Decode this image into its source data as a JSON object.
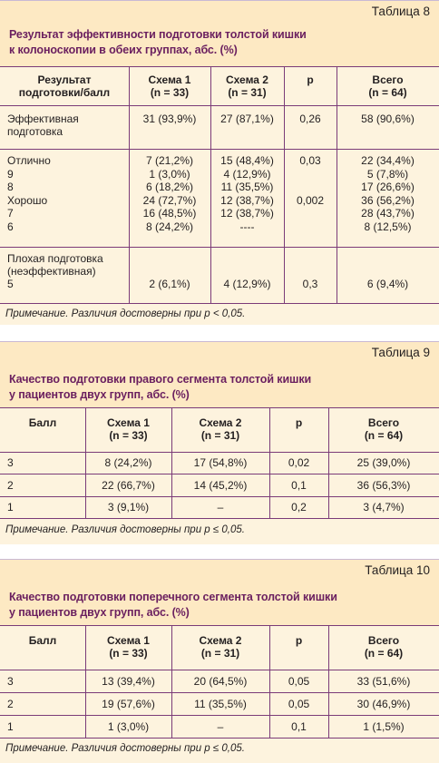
{
  "table8": {
    "number": "Таблица 8",
    "title_line1": "Результат эффективности подготовки толстой кишки",
    "title_line2": "к колоноскопии в обеих группах, абс. (%)",
    "headers": [
      "Результат\nподготовки/балл",
      "Схема 1\n(n = 33)",
      "Схема 2\n(n = 31)",
      "p",
      "Всего\n(n = 64)"
    ],
    "rows": [
      [
        "Эффективная\nподготовка",
        "31 (93,9%)",
        "27 (87,1%)",
        "0,26",
        "58 (90,6%)"
      ],
      [
        "Отлично\n9\n8\nХорошо\n7\n6",
        "7 (21,2%)\n1 (3,0%)\n6 (18,2%)\n24 (72,7%)\n16 (48,5%)\n8 (24,2%)",
        "15 (48,4%)\n4 (12,9%)\n11 (35,5%)\n12 (38,7%)\n12 (38,7%)\n----",
        "0,03\n\n\n0,002\n\n",
        "22 (34,4%)\n5 (7,8%)\n17 (26,6%)\n36 (56,2%)\n28 (43,7%)\n8 (12,5%)"
      ],
      [
        "Плохая подготовка\n(неэффективная)\n5",
        "\n\n2 (6,1%)",
        "\n\n4 (12,9%)",
        "\n\n0,3",
        "\n\n6 (9,4%)"
      ]
    ],
    "note": "Примечание. Различия достоверны при p < 0,05."
  },
  "table9": {
    "number": "Таблица 9",
    "title_line1": "Качество подготовки правого сегмента толстой кишки",
    "title_line2": "у пациентов двух групп, абс. (%)",
    "headers": [
      "Балл",
      "Схема 1\n(n = 33)",
      "Схема 2\n(n = 31)",
      "p",
      "Всего\n(n = 64)"
    ],
    "rows": [
      [
        "3",
        "8 (24,2%)",
        "17 (54,8%)",
        "0,02",
        "25 (39,0%)"
      ],
      [
        "2",
        "22 (66,7%)",
        "14 (45,2%)",
        "0,1",
        "36 (56,3%)"
      ],
      [
        "1",
        "3 (9,1%)",
        "–",
        "0,2",
        "3 (4,7%)"
      ]
    ],
    "note": "Примечание. Различия достоверны при p ≤ 0,05."
  },
  "table10": {
    "number": "Таблица 10",
    "title_line1": "Качество подготовки поперечного сегмента толстой кишки",
    "title_line2": "у пациентов двух групп, абс. (%)",
    "headers": [
      "Балл",
      "Схема 1\n(n = 33)",
      "Схема 2\n(n = 31)",
      "p",
      "Всего\n(n = 64)"
    ],
    "rows": [
      [
        "3",
        "13 (39,4%)",
        "20 (64,5%)",
        "0,05",
        "33 (51,6%)"
      ],
      [
        "2",
        "19 (57,6%)",
        "11 (35,5%)",
        "0,05",
        "30 (46,9%)"
      ],
      [
        "1",
        "1 (3,0%)",
        "–",
        "0,1",
        "1 (1,5%)"
      ]
    ],
    "note": "Примечание. Различия достоверны при p ≤ 0,05."
  }
}
